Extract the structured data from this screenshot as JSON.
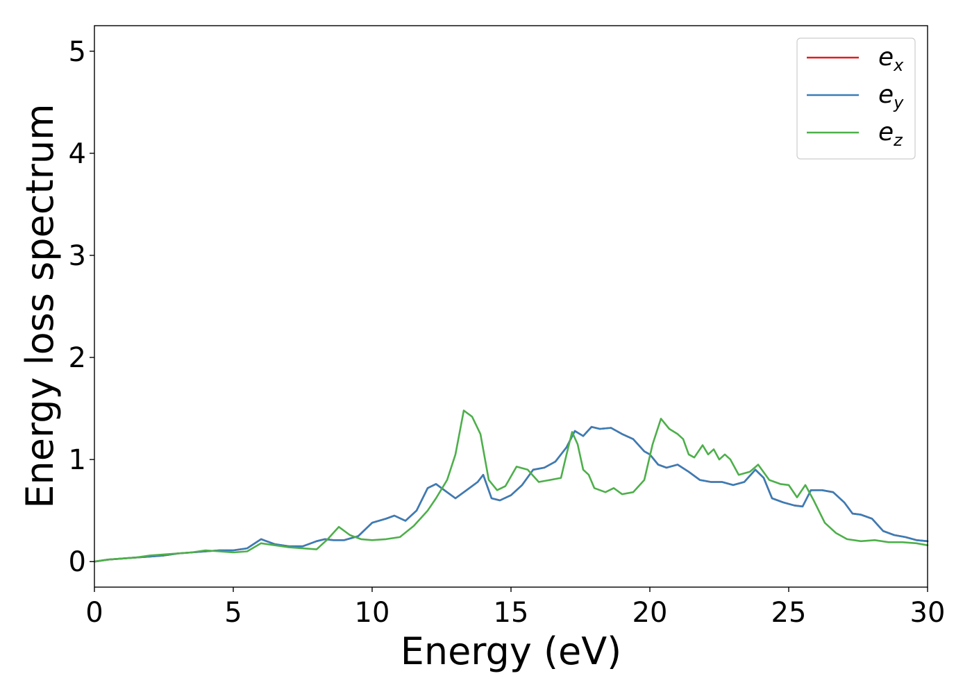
{
  "chart_data": {
    "type": "line",
    "title": "",
    "xlabel": "Energy (eV)",
    "ylabel": "Energy loss spectrum",
    "xlim": [
      0,
      30
    ],
    "ylim": [
      -0.25,
      5.25
    ],
    "xticks": [
      "0",
      "5",
      "10",
      "15",
      "20",
      "25",
      "30"
    ],
    "xtick_values": [
      0,
      5,
      10,
      15,
      20,
      25,
      30
    ],
    "yticks": [
      "0",
      "1",
      "2",
      "3",
      "4",
      "5"
    ],
    "ytick_values": [
      0,
      1,
      2,
      3,
      4,
      5
    ],
    "grid": false,
    "legend_position": "top-right",
    "series": [
      {
        "name": "e_x",
        "legend_base": "e",
        "legend_sub": "x",
        "color": "#e41a1c",
        "hidden_behind": "e_y",
        "x": [
          0,
          0.5,
          1,
          1.5,
          2,
          2.5,
          3,
          3.5,
          4,
          4.5,
          5,
          5.5,
          6,
          6.5,
          7,
          7.5,
          8,
          8.3,
          8.6,
          9,
          9.5,
          10,
          10.5,
          10.8,
          11.2,
          11.6,
          12,
          12.3,
          12.6,
          13,
          13.4,
          13.8,
          14,
          14.3,
          14.6,
          15,
          15.4,
          15.8,
          16.2,
          16.6,
          17,
          17.3,
          17.6,
          17.9,
          18.2,
          18.6,
          19,
          19.4,
          19.8,
          20,
          20.3,
          20.6,
          21,
          21.4,
          21.8,
          22.2,
          22.6,
          23,
          23.4,
          23.8,
          24.1,
          24.4,
          24.8,
          25.2,
          25.5,
          25.8,
          26.2,
          26.6,
          27,
          27.3,
          27.6,
          28,
          28.4,
          28.8,
          29.2,
          29.6,
          30
        ],
        "y": [
          0,
          0.02,
          0.03,
          0.04,
          0.05,
          0.06,
          0.08,
          0.09,
          0.1,
          0.11,
          0.11,
          0.13,
          0.22,
          0.17,
          0.15,
          0.15,
          0.2,
          0.22,
          0.21,
          0.21,
          0.25,
          0.38,
          0.42,
          0.45,
          0.4,
          0.5,
          0.72,
          0.76,
          0.7,
          0.62,
          0.7,
          0.78,
          0.85,
          0.62,
          0.6,
          0.65,
          0.75,
          0.9,
          0.92,
          0.98,
          1.12,
          1.28,
          1.23,
          1.32,
          1.3,
          1.31,
          1.25,
          1.2,
          1.08,
          1.05,
          0.95,
          0.92,
          0.95,
          0.88,
          0.8,
          0.78,
          0.78,
          0.75,
          0.78,
          0.9,
          0.82,
          0.62,
          0.58,
          0.55,
          0.54,
          0.7,
          0.7,
          0.68,
          0.58,
          0.47,
          0.46,
          0.42,
          0.3,
          0.26,
          0.24,
          0.21,
          0.2
        ]
      },
      {
        "name": "e_y",
        "legend_base": "e",
        "legend_sub": "y",
        "color": "#377eb8",
        "x": [
          0,
          0.5,
          1,
          1.5,
          2,
          2.5,
          3,
          3.5,
          4,
          4.5,
          5,
          5.5,
          6,
          6.5,
          7,
          7.5,
          8,
          8.3,
          8.6,
          9,
          9.5,
          10,
          10.5,
          10.8,
          11.2,
          11.6,
          12,
          12.3,
          12.6,
          13,
          13.4,
          13.8,
          14,
          14.3,
          14.6,
          15,
          15.4,
          15.8,
          16.2,
          16.6,
          17,
          17.3,
          17.6,
          17.9,
          18.2,
          18.6,
          19,
          19.4,
          19.8,
          20,
          20.3,
          20.6,
          21,
          21.4,
          21.8,
          22.2,
          22.6,
          23,
          23.4,
          23.8,
          24.1,
          24.4,
          24.8,
          25.2,
          25.5,
          25.8,
          26.2,
          26.6,
          27,
          27.3,
          27.6,
          28,
          28.4,
          28.8,
          29.2,
          29.6,
          30
        ],
        "y": [
          0,
          0.02,
          0.03,
          0.04,
          0.05,
          0.06,
          0.08,
          0.09,
          0.1,
          0.11,
          0.11,
          0.13,
          0.22,
          0.17,
          0.15,
          0.15,
          0.2,
          0.22,
          0.21,
          0.21,
          0.25,
          0.38,
          0.42,
          0.45,
          0.4,
          0.5,
          0.72,
          0.76,
          0.7,
          0.62,
          0.7,
          0.78,
          0.85,
          0.62,
          0.6,
          0.65,
          0.75,
          0.9,
          0.92,
          0.98,
          1.12,
          1.28,
          1.23,
          1.32,
          1.3,
          1.31,
          1.25,
          1.2,
          1.08,
          1.05,
          0.95,
          0.92,
          0.95,
          0.88,
          0.8,
          0.78,
          0.78,
          0.75,
          0.78,
          0.9,
          0.82,
          0.62,
          0.58,
          0.55,
          0.54,
          0.7,
          0.7,
          0.68,
          0.58,
          0.47,
          0.46,
          0.42,
          0.3,
          0.26,
          0.24,
          0.21,
          0.2
        ]
      },
      {
        "name": "e_z",
        "legend_base": "e",
        "legend_sub": "z",
        "color": "#4daf4a",
        "x": [
          0,
          0.5,
          1,
          1.5,
          2,
          2.5,
          3,
          3.5,
          4,
          4.5,
          5,
          5.5,
          6,
          6.5,
          7,
          7.5,
          8,
          8.4,
          8.8,
          9.2,
          9.6,
          10,
          10.5,
          11,
          11.5,
          12,
          12.3,
          12.7,
          13,
          13.3,
          13.6,
          13.9,
          14.2,
          14.5,
          14.8,
          15.2,
          15.6,
          16,
          16.4,
          16.8,
          17,
          17.2,
          17.4,
          17.6,
          17.8,
          18,
          18.4,
          18.7,
          19,
          19.4,
          19.8,
          20.1,
          20.4,
          20.7,
          21,
          21.2,
          21.4,
          21.6,
          21.9,
          22.1,
          22.3,
          22.5,
          22.7,
          22.9,
          23.2,
          23.6,
          23.9,
          24.3,
          24.7,
          25,
          25.3,
          25.6,
          25.9,
          26.3,
          26.7,
          27.1,
          27.6,
          28.1,
          28.6,
          29.1,
          29.6,
          30
        ],
        "y": [
          0,
          0.02,
          0.03,
          0.04,
          0.06,
          0.07,
          0.08,
          0.09,
          0.11,
          0.1,
          0.09,
          0.1,
          0.18,
          0.16,
          0.14,
          0.13,
          0.12,
          0.22,
          0.34,
          0.26,
          0.22,
          0.21,
          0.22,
          0.24,
          0.35,
          0.5,
          0.62,
          0.8,
          1.05,
          1.48,
          1.42,
          1.25,
          0.8,
          0.7,
          0.74,
          0.93,
          0.9,
          0.78,
          0.8,
          0.82,
          1.05,
          1.27,
          1.15,
          0.9,
          0.85,
          0.72,
          0.68,
          0.72,
          0.66,
          0.68,
          0.8,
          1.15,
          1.4,
          1.3,
          1.25,
          1.2,
          1.05,
          1.02,
          1.14,
          1.05,
          1.1,
          1.0,
          1.05,
          1.0,
          0.85,
          0.88,
          0.95,
          0.8,
          0.76,
          0.75,
          0.63,
          0.75,
          0.6,
          0.38,
          0.28,
          0.22,
          0.2,
          0.21,
          0.19,
          0.19,
          0.18,
          0.16
        ]
      }
    ]
  }
}
